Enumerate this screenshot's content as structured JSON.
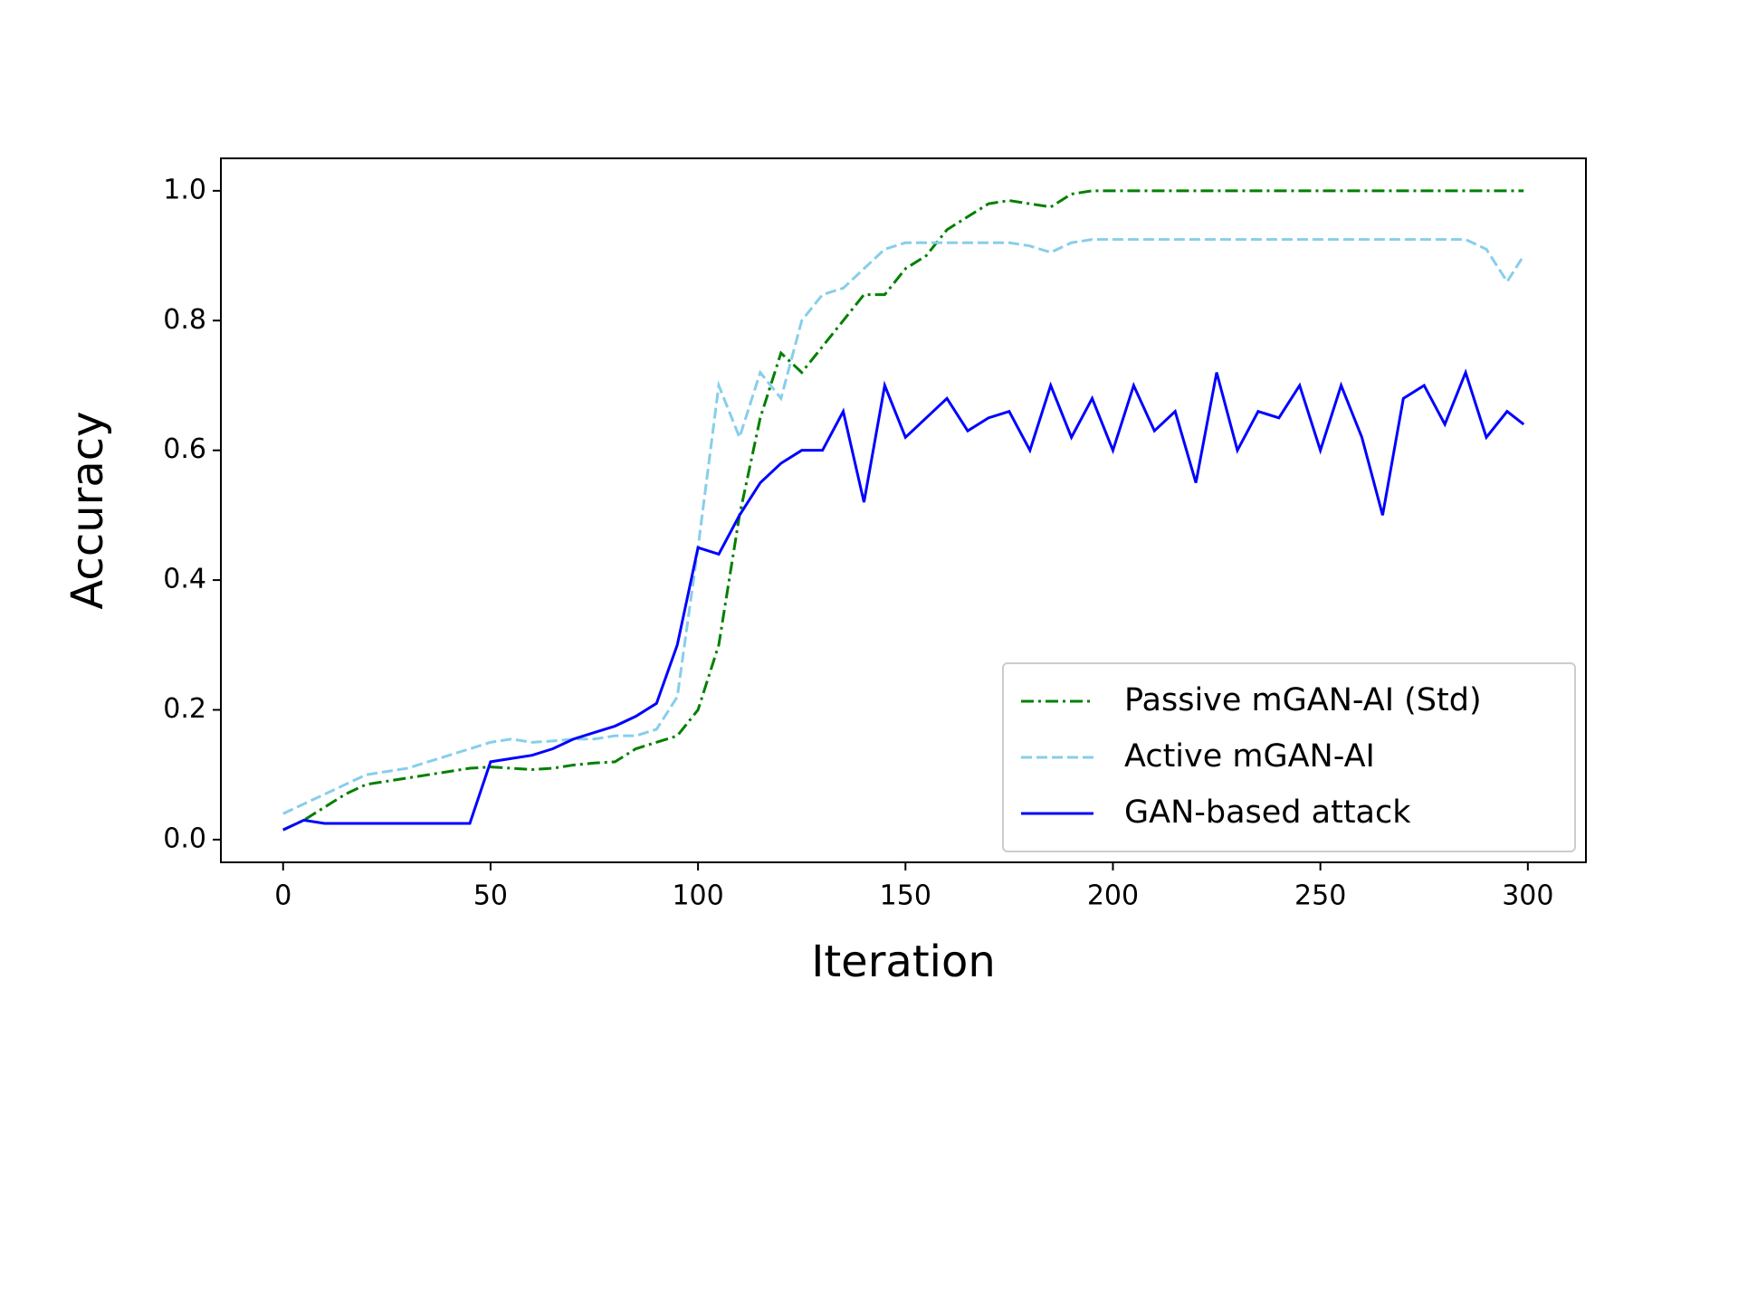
{
  "chart_data": {
    "type": "line",
    "xlabel": "Iteration",
    "ylabel": "Accuracy",
    "x": [
      0,
      5,
      10,
      15,
      20,
      25,
      30,
      35,
      40,
      45,
      50,
      55,
      60,
      65,
      70,
      75,
      80,
      85,
      90,
      95,
      100,
      105,
      110,
      115,
      120,
      125,
      130,
      135,
      140,
      145,
      150,
      155,
      160,
      165,
      170,
      175,
      180,
      185,
      190,
      195,
      200,
      205,
      210,
      215,
      220,
      225,
      230,
      235,
      240,
      245,
      250,
      255,
      260,
      265,
      270,
      275,
      280,
      285,
      290,
      295,
      299
    ],
    "series": [
      {
        "name": "Passive mGAN-AI (Std)",
        "color": "#008000",
        "dash": "dashdot",
        "values": [
          0.015,
          0.03,
          0.05,
          0.07,
          0.085,
          0.09,
          0.095,
          0.1,
          0.105,
          0.11,
          0.112,
          0.11,
          0.108,
          0.11,
          0.115,
          0.118,
          0.12,
          0.14,
          0.15,
          0.16,
          0.2,
          0.3,
          0.5,
          0.65,
          0.75,
          0.72,
          0.76,
          0.8,
          0.84,
          0.84,
          0.88,
          0.9,
          0.94,
          0.96,
          0.98,
          0.985,
          0.98,
          0.975,
          0.995,
          1.0,
          1.0,
          1.0,
          1.0,
          1.0,
          1.0,
          1.0,
          1.0,
          1.0,
          1.0,
          1.0,
          1.0,
          1.0,
          1.0,
          1.0,
          1.0,
          1.0,
          1.0,
          1.0,
          1.0,
          1.0,
          1.0
        ]
      },
      {
        "name": "Active mGAN-AI",
        "color": "#87ceeb",
        "dash": "dashed",
        "values": [
          0.04,
          0.055,
          0.07,
          0.085,
          0.1,
          0.105,
          0.11,
          0.12,
          0.13,
          0.14,
          0.15,
          0.155,
          0.15,
          0.152,
          0.155,
          0.155,
          0.16,
          0.16,
          0.17,
          0.22,
          0.45,
          0.7,
          0.62,
          0.72,
          0.68,
          0.8,
          0.84,
          0.85,
          0.88,
          0.91,
          0.92,
          0.92,
          0.92,
          0.92,
          0.92,
          0.92,
          0.915,
          0.905,
          0.92,
          0.925,
          0.925,
          0.925,
          0.925,
          0.925,
          0.925,
          0.925,
          0.925,
          0.925,
          0.925,
          0.925,
          0.925,
          0.925,
          0.925,
          0.925,
          0.925,
          0.925,
          0.925,
          0.925,
          0.91,
          0.86,
          0.9
        ]
      },
      {
        "name": "GAN-based attack",
        "color": "#0000ff",
        "dash": "solid",
        "values": [
          0.015,
          0.03,
          0.025,
          0.025,
          0.025,
          0.025,
          0.025,
          0.025,
          0.025,
          0.025,
          0.12,
          0.125,
          0.13,
          0.14,
          0.155,
          0.165,
          0.175,
          0.19,
          0.21,
          0.3,
          0.45,
          0.44,
          0.5,
          0.55,
          0.58,
          0.6,
          0.6,
          0.66,
          0.52,
          0.7,
          0.62,
          0.65,
          0.68,
          0.63,
          0.65,
          0.66,
          0.6,
          0.7,
          0.62,
          0.68,
          0.6,
          0.7,
          0.63,
          0.66,
          0.55,
          0.72,
          0.6,
          0.66,
          0.65,
          0.7,
          0.6,
          0.7,
          0.62,
          0.5,
          0.68,
          0.7,
          0.64,
          0.72,
          0.62,
          0.66,
          0.64
        ]
      }
    ],
    "xlim": [
      -15,
      314
    ],
    "ylim": [
      -0.035,
      1.05
    ],
    "xticks": [
      0,
      50,
      100,
      150,
      200,
      250,
      300
    ],
    "yticks": [
      {
        "value": 0,
        "label": "0.0"
      },
      0.2,
      0.4,
      0.6,
      0.8,
      {
        "value": 1,
        "label": "1.0"
      }
    ],
    "legend": "lower right",
    "grid": false
  }
}
